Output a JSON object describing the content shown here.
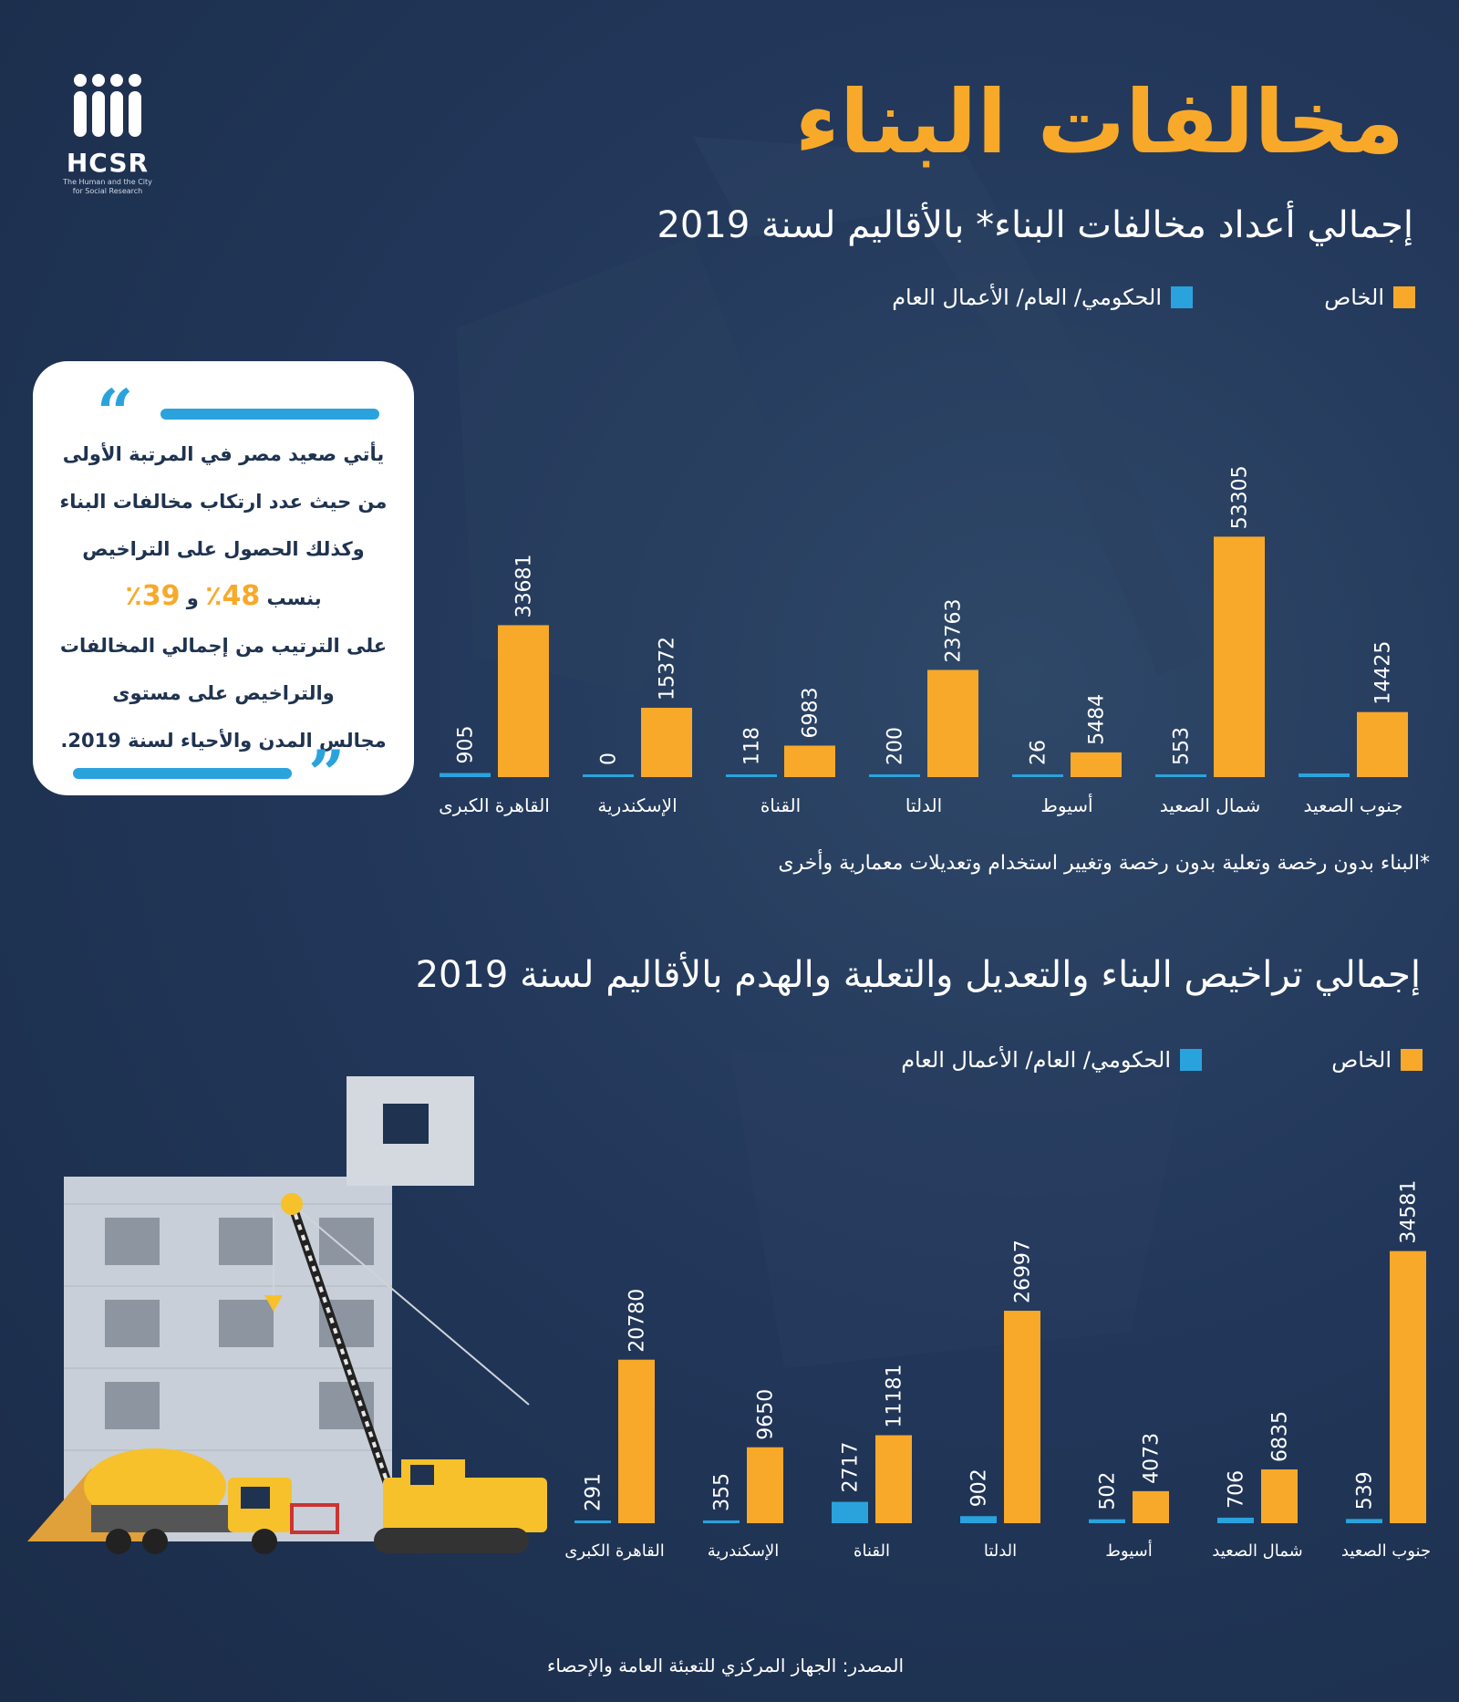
{
  "logo": {
    "name": "HCSR",
    "subtitle_line1": "The Human and the City",
    "subtitle_line2": "for Social Research"
  },
  "title": "مخالفات البناء",
  "quote": {
    "line1": "يأتي صعيد مصر في المرتبة الأولى",
    "line2": "من حيث عدد ارتكاب مخالفات البناء",
    "line3": "وكذلك الحصول على التراخيص",
    "line4_prefix": "بنسب",
    "pct1": "48٪",
    "and": "و",
    "pct2": "39٪",
    "line5": "على الترتيب من إجمالي المخالفات",
    "line6": "والتراخيص على مستوى",
    "line7": "مجالس المدن والأحياء لسنة 2019."
  },
  "footnote": "*البناء بدون رخصة وتعلية بدون رخصة وتغيير استخدام وتعديلات معمارية وأخرى",
  "source": "المصدر: الجهاز المركزي للتعبئة العامة والإحصاء",
  "colors": {
    "private": "#f8a92a",
    "public": "#2aa3dd",
    "background": "#1f3350"
  },
  "chart_data": [
    {
      "type": "bar",
      "title": "إجمالي أعداد مخالفات البناء* بالأقاليم لسنة 2019",
      "categories": [
        "جنوب الصعيد",
        "شمال الصعيد",
        "أسيوط",
        "الدلتا",
        "القناة",
        "الإسكندرية",
        "القاهرة الكبرى"
      ],
      "series": [
        {
          "name": "الخاص",
          "values": [
            14425,
            53305,
            5484,
            23763,
            6983,
            15372,
            33681
          ]
        },
        {
          "name": "الحكومي/ العام/ الأعمال العام",
          "values": [
            null,
            553,
            26,
            200,
            118,
            0,
            905
          ]
        }
      ],
      "ylim": [
        0,
        55000
      ],
      "legend": "top-right",
      "grid": false
    },
    {
      "type": "bar",
      "title": "إجمالي تراخيص البناء والتعديل والتعلية والهدم  بالأقاليم لسنة 2019",
      "categories": [
        "جنوب الصعيد",
        "شمال الصعيد",
        "أسيوط",
        "الدلتا",
        "القناة",
        "الإسكندرية",
        "القاهرة الكبرى"
      ],
      "series": [
        {
          "name": "الخاص",
          "values": [
            34581,
            6835,
            4073,
            26997,
            11181,
            9650,
            20780
          ]
        },
        {
          "name": "الحكومي/ العام/ الأعمال العام",
          "values": [
            539,
            706,
            502,
            902,
            2717,
            355,
            291
          ]
        }
      ],
      "ylim": [
        0,
        35000
      ],
      "legend": "top-right",
      "grid": false
    }
  ]
}
